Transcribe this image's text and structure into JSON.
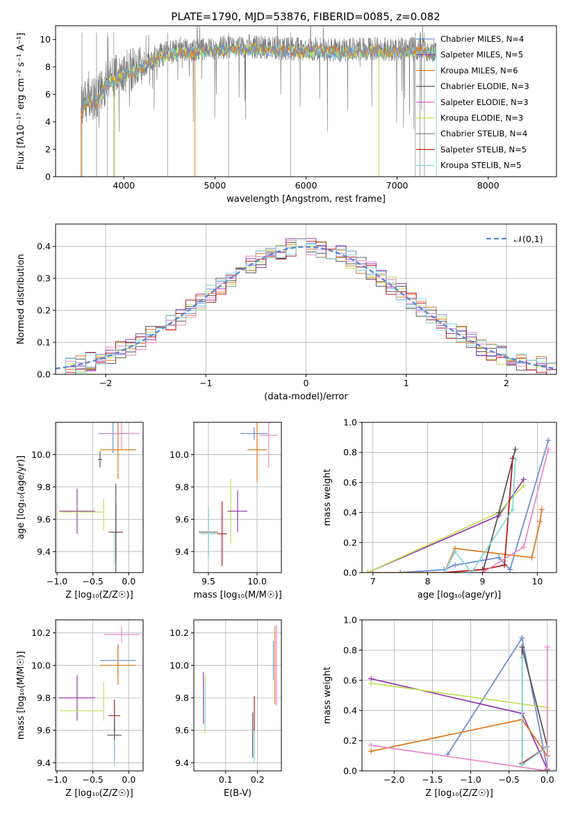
{
  "title": "PLATE=1790, MJD=53876, FIBERID=0085, z=0.082",
  "colors": {
    "series": [
      "#6a8fd8",
      "#9a3ab0",
      "#e07b22",
      "#555555",
      "#d94fd0",
      "#bfe05a",
      "#777777",
      "#b01c1c",
      "#86d8d8",
      "#e88bc8"
    ]
  },
  "chart_data": [
    {
      "id": "spectrum",
      "type": "line",
      "xlabel": "wavelength [Angstrom, rest frame]",
      "ylabel": "Flux [fλ10⁻¹⁷ erg cm⁻² s⁻¹ A⁻¹]",
      "xlim": [
        3250,
        8750
      ],
      "ylim": [
        0,
        11
      ],
      "xticks": [
        4000,
        5000,
        6000,
        7000,
        8000
      ],
      "yticks": [
        0,
        2,
        4,
        6,
        8,
        10
      ],
      "grid": false,
      "legend": "top-right",
      "legend_entries": [
        "Chabrier MILES, N_SSP=4",
        "Salpeter MILES, N_SSP=5",
        "Kroupa MILES, N_SSP=6",
        "Chabrier ELODIE, N_SSP=3",
        "Salpeter ELODIE, N_SSP=3",
        "Kroupa ELODIE, N_SSP=3",
        "Chabrier STELIB, N_SSP=4",
        "Salpeter STELIB, N_SSP=5",
        "Kroupa STELIB, N_SSP=5"
      ],
      "legend_colors": [
        "#6a8fd8",
        "#9a3ab0",
        "#e07b22",
        "#555555",
        "#d94fd0",
        "#bfe05a",
        "#777777",
        "#b01c1c",
        "#86d8d8"
      ],
      "data_envelope": {
        "x": [
          3530,
          3600,
          3700,
          3800,
          3900,
          4000,
          4100,
          4200,
          4300,
          4400,
          4600,
          4800,
          5000,
          5200,
          5400,
          5600,
          5800,
          6000,
          6200,
          6400,
          6600,
          6800,
          7000,
          7200,
          7430
        ],
        "y": [
          5.0,
          5.6,
          5.7,
          6.8,
          7.3,
          7.6,
          7.8,
          8.1,
          8.6,
          8.9,
          9.2,
          9.2,
          9.4,
          9.4,
          9.5,
          9.4,
          9.3,
          9.3,
          9.3,
          9.2,
          9.3,
          9.3,
          9.3,
          9.3,
          9.2
        ]
      }
    },
    {
      "id": "residuals",
      "type": "histogram",
      "xlabel": "(data-model)/error",
      "ylabel": "Normed distribution",
      "xlim": [
        -2.5,
        2.5
      ],
      "ylim": [
        0,
        0.47
      ],
      "xticks": [
        -2,
        -1,
        0,
        1,
        2
      ],
      "yticks": [
        0.0,
        0.1,
        0.2,
        0.3,
        0.4
      ],
      "grid": true,
      "legend": "top-right",
      "reference_label": "𝒩(0,1)",
      "bin_width": 0.1
    },
    {
      "id": "age-vs-Z",
      "type": "errorbar",
      "xlabel": "Z [log₁₀(Z/Z☉)]",
      "ylabel": "age  [log₁₀(age/yr)]",
      "xlim": [
        -1.02,
        0.2
      ],
      "ylim": [
        9.27,
        10.2
      ],
      "xticks": [
        -1.0,
        -0.5,
        0.0
      ],
      "yticks": [
        9.4,
        9.6,
        9.8,
        10.0
      ],
      "grid": true,
      "points": [
        {
          "x": -0.22,
          "y": 10.13,
          "xerr": 0.2,
          "yerr": 0.12,
          "c": 0
        },
        {
          "x": -0.1,
          "y": 10.13,
          "xerr": 0.25,
          "yerr": 0.1,
          "c": 9
        },
        {
          "x": -0.15,
          "y": 10.03,
          "xerr": 0.25,
          "yerr": 0.18,
          "c": 2
        },
        {
          "x": -0.4,
          "y": 9.97,
          "xerr": 0.03,
          "yerr": 0.05,
          "c": 3
        },
        {
          "x": -0.72,
          "y": 9.65,
          "xerr": 0.25,
          "yerr": 0.14,
          "c": 1
        },
        {
          "x": -0.66,
          "y": 9.645,
          "xerr": 0.3,
          "yerr": 0.0,
          "c": 5
        },
        {
          "x": -0.35,
          "y": 9.63,
          "xerr": 0.0,
          "yerr": 0.1,
          "c": 5
        },
        {
          "x": -0.18,
          "y": 9.52,
          "xerr": 0.1,
          "yerr": 0.18,
          "c": 7
        },
        {
          "x": -0.18,
          "y": 9.52,
          "xerr": 0.08,
          "yerr": 0.3,
          "c": 3
        },
        {
          "x": -0.2,
          "y": 9.42,
          "xerr": 0.0,
          "yerr": 0.1,
          "c": 8
        }
      ]
    },
    {
      "id": "age-vs-mass",
      "type": "errorbar",
      "xlabel": "mass [log₁₀(M/M☉)]",
      "ylabel": "",
      "xlim": [
        9.35,
        10.25
      ],
      "ylim": [
        9.27,
        10.2
      ],
      "xticks": [
        9.5,
        10.0
      ],
      "yticks": [
        9.4,
        9.6,
        9.8,
        10.0
      ],
      "grid": true,
      "points": [
        {
          "x": 9.97,
          "y": 10.13,
          "xerr": 0.14,
          "yerr": 0.04,
          "c": 0
        },
        {
          "x": 10.12,
          "y": 10.12,
          "xerr": 0.09,
          "yerr": 0.2,
          "c": 9
        },
        {
          "x": 10.0,
          "y": 10.03,
          "xerr": 0.1,
          "yerr": 0.2,
          "c": 2
        },
        {
          "x": 9.73,
          "y": 9.65,
          "xerr": 0.05,
          "yerr": 0.2,
          "c": 5
        },
        {
          "x": 9.8,
          "y": 9.65,
          "xerr": 0.1,
          "yerr": 0.13,
          "c": 1
        },
        {
          "x": 9.5,
          "y": 9.52,
          "xerr": 0.1,
          "yerr": 0.15,
          "c": 3
        },
        {
          "x": 9.64,
          "y": 9.51,
          "xerr": 0.05,
          "yerr": 0.2,
          "c": 7
        },
        {
          "x": 9.5,
          "y": 9.51,
          "xerr": 0.08,
          "yerr": 0.16,
          "c": 8
        }
      ]
    },
    {
      "id": "massweight-vs-age",
      "type": "line",
      "xlabel": "age  [log₁₀(age/yr)]",
      "ylabel": "mass weight",
      "xlim": [
        6.8,
        10.35
      ],
      "ylim": [
        0,
        1.0
      ],
      "xticks": [
        7,
        8,
        9,
        10
      ],
      "yticks": [
        0.0,
        0.2,
        0.4,
        0.6,
        0.8,
        1.0
      ],
      "grid": true,
      "series": [
        {
          "c": 0,
          "x": [
            7.5,
            8.3,
            8.5,
            9.3,
            9.5,
            10.2
          ],
          "y": [
            0.0,
            0.02,
            0.05,
            0.1,
            0.02,
            0.88
          ]
        },
        {
          "c": 1,
          "x": [
            6.9,
            9.3,
            9.75
          ],
          "y": [
            0.0,
            0.38,
            0.62
          ]
        },
        {
          "c": 2,
          "x": [
            7.0,
            8.3,
            8.5,
            9.9,
            10.05,
            10.08
          ],
          "y": [
            0.0,
            0.0,
            0.16,
            0.1,
            0.34,
            0.42
          ]
        },
        {
          "c": 5,
          "x": [
            6.9,
            9.3,
            9.75
          ],
          "y": [
            0.0,
            0.4,
            0.58
          ]
        },
        {
          "c": 3,
          "x": [
            9.0,
            9.3,
            9.6
          ],
          "y": [
            0.0,
            0.4,
            0.82
          ]
        },
        {
          "c": 7,
          "x": [
            8.3,
            9.0,
            9.4,
            9.55
          ],
          "y": [
            0.0,
            0.02,
            0.05,
            0.76
          ]
        },
        {
          "c": 8,
          "x": [
            8.3,
            8.5,
            8.8,
            9.55,
            9.6
          ],
          "y": [
            0.0,
            0.14,
            0.0,
            0.42,
            0.75
          ]
        },
        {
          "c": 9,
          "x": [
            9.0,
            9.75,
            10.2
          ],
          "y": [
            0.0,
            0.17,
            0.82
          ]
        }
      ]
    },
    {
      "id": "mass-vs-Z",
      "type": "errorbar",
      "xlabel": "Z [log₁₀(Z/Z☉)]",
      "ylabel": "mass [log₁₀(M/M☉)]",
      "xlim": [
        -1.02,
        0.2
      ],
      "ylim": [
        9.35,
        10.28
      ],
      "xticks": [
        -1.0,
        -0.5,
        0.0
      ],
      "yticks": [
        9.4,
        9.6,
        9.8,
        10.0,
        10.2
      ],
      "grid": true,
      "points": [
        {
          "x": -0.1,
          "y": 10.19,
          "xerr": 0.25,
          "yerr": 0.05,
          "c": 9
        },
        {
          "x": -0.15,
          "y": 10.03,
          "xerr": 0.25,
          "yerr": 0.1,
          "c": 0
        },
        {
          "x": -0.15,
          "y": 10.0,
          "xerr": 0.25,
          "yerr": 0.12,
          "c": 2
        },
        {
          "x": -0.72,
          "y": 9.8,
          "xerr": 0.25,
          "yerr": 0.14,
          "c": 1
        },
        {
          "x": -0.66,
          "y": 9.72,
          "xerr": 0.3,
          "yerr": 0.0,
          "c": 5
        },
        {
          "x": -0.35,
          "y": 9.78,
          "xerr": 0.0,
          "yerr": 0.12,
          "c": 5
        },
        {
          "x": -0.2,
          "y": 9.69,
          "xerr": 0.08,
          "yerr": 0.1,
          "c": 7
        },
        {
          "x": -0.2,
          "y": 9.57,
          "xerr": 0.1,
          "yerr": 0.15,
          "c": 3
        },
        {
          "x": -0.2,
          "y": 9.46,
          "xerr": 0.0,
          "yerr": 0.08,
          "c": 8
        }
      ]
    },
    {
      "id": "mass-vs-ebv",
      "type": "errorbar",
      "xlabel": "E(B-V)",
      "ylabel": "",
      "xlim": [
        0.0,
        0.275
      ],
      "ylim": [
        9.35,
        10.28
      ],
      "xticks": [
        0.1,
        0.2
      ],
      "yticks": [
        9.4,
        9.6,
        9.8,
        10.0,
        10.2
      ],
      "grid": true,
      "points": [
        {
          "x": 0.03,
          "y": 9.8,
          "xerr": 0.0,
          "yerr": 0.16,
          "c": 1
        },
        {
          "x": 0.035,
          "y": 9.76,
          "xerr": 0.0,
          "yerr": 0.18,
          "c": 5
        },
        {
          "x": 0.035,
          "y": 9.74,
          "xerr": 0.0,
          "yerr": 0.14,
          "c": 8
        },
        {
          "x": 0.185,
          "y": 9.57,
          "xerr": 0.0,
          "yerr": 0.14,
          "c": 3
        },
        {
          "x": 0.19,
          "y": 9.69,
          "xerr": 0.0,
          "yerr": 0.12,
          "c": 7
        },
        {
          "x": 0.19,
          "y": 9.5,
          "xerr": 0.0,
          "yerr": 0.1,
          "c": 8
        },
        {
          "x": 0.25,
          "y": 10.03,
          "xerr": 0.0,
          "yerr": 0.12,
          "c": 0
        },
        {
          "x": 0.255,
          "y": 10.0,
          "xerr": 0.0,
          "yerr": 0.24,
          "c": 2
        },
        {
          "x": 0.26,
          "y": 10.0,
          "xerr": 0.0,
          "yerr": 0.25,
          "c": 9
        }
      ]
    },
    {
      "id": "massweight-vs-Z",
      "type": "line",
      "xlabel": "Z [log₁₀(Z/Z☉)]",
      "ylabel": "mass weight",
      "xlim": [
        -2.42,
        0.12
      ],
      "ylim": [
        0,
        1.0
      ],
      "xticks": [
        -2.0,
        -1.5,
        -1.0,
        -0.5,
        0.0
      ],
      "yticks": [
        0.0,
        0.2,
        0.4,
        0.6,
        0.8,
        1.0
      ],
      "grid": true,
      "series": [
        {
          "c": 0,
          "x": [
            -1.3,
            -0.33,
            0.0
          ],
          "y": [
            0.11,
            0.88,
            0.01
          ]
        },
        {
          "c": 1,
          "x": [
            -2.3,
            -0.33,
            0.0
          ],
          "y": [
            0.61,
            0.38,
            0.01
          ]
        },
        {
          "c": 2,
          "x": [
            -2.3,
            -0.33,
            0.0
          ],
          "y": [
            0.13,
            0.34,
            0.1
          ]
        },
        {
          "c": 5,
          "x": [
            -2.3,
            0.0,
            0.0
          ],
          "y": [
            0.58,
            0.42,
            0.0
          ]
        },
        {
          "c": 3,
          "x": [
            -0.33,
            -0.33,
            0.0
          ],
          "y": [
            0.04,
            0.82,
            0.16
          ]
        },
        {
          "c": 7,
          "x": [
            -0.33,
            -0.33,
            0.0
          ],
          "y": [
            0.75,
            0.05,
            0.16
          ]
        },
        {
          "c": 8,
          "x": [
            -0.33,
            -0.33,
            0.0
          ],
          "y": [
            0.75,
            0.04,
            0.16
          ]
        },
        {
          "c": 9,
          "x": [
            -2.3,
            0.0,
            0.0
          ],
          "y": [
            0.17,
            0.0,
            0.82
          ]
        }
      ]
    }
  ]
}
